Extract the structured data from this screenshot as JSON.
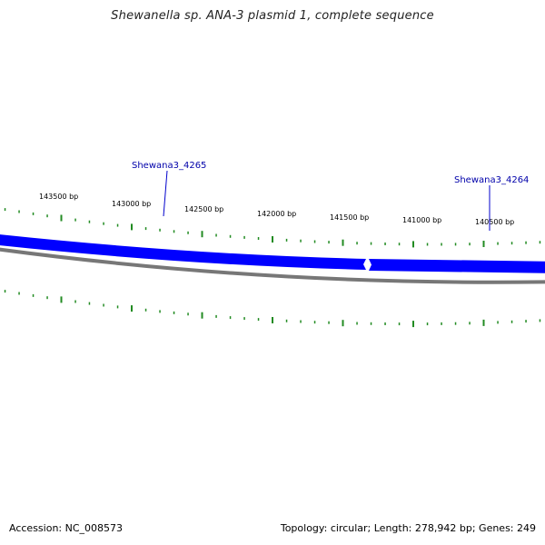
{
  "title": "Shewanella sp. ANA-3 plasmid 1, complete sequence",
  "colors": {
    "gene_fill": "#0000ff",
    "gene_label": "#0000aa",
    "backbone": "#777777",
    "tick": "#228b22",
    "tick_label": "#000000"
  },
  "scale_labels": [
    "143500 bp",
    "143000 bp",
    "142500 bp",
    "142000 bp",
    "141500 bp",
    "141000 bp",
    "140500 bp"
  ],
  "genes": [
    {
      "name": "Shewana3_4265"
    },
    {
      "name": "Shewana3_4264"
    }
  ],
  "footer": {
    "accession": "Accession: NC_008573",
    "summary": "Topology: circular; Length: 278,942 bp; Genes: 249"
  }
}
